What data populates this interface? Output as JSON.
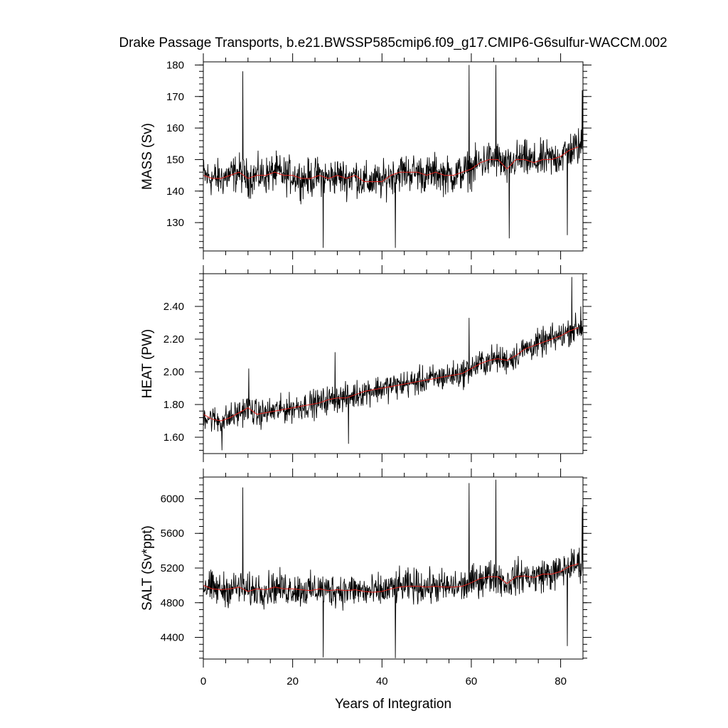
{
  "chart_data": {
    "type": "line",
    "title": "Drake Passage Transports, b.e21.BWSSP585cmip6.f09_g17.CMIP6-G6sulfur-WACCM.002",
    "xlabel": "Years of Integration",
    "xlim": [
      0,
      85
    ],
    "x_ticks": [
      0,
      20,
      40,
      60,
      80
    ],
    "x_tick_labels": [
      "0",
      "20",
      "40",
      "60",
      "80"
    ],
    "colors": {
      "monthly": "#000000",
      "annual_mean": "#e0201b"
    },
    "panels": [
      {
        "name": "mass",
        "ylabel": "MASS (Sv)",
        "ylim": [
          121,
          181
        ],
        "y_ticks": [
          130,
          140,
          150,
          160,
          170,
          180
        ],
        "y_tick_labels": [
          "130",
          "140",
          "150",
          "160",
          "170",
          "180"
        ],
        "annual_mean": [
          [
            0,
            145
          ],
          [
            2,
            144
          ],
          [
            4,
            144
          ],
          [
            6,
            145
          ],
          [
            8,
            146
          ],
          [
            10,
            144
          ],
          [
            12,
            145
          ],
          [
            14,
            145
          ],
          [
            16,
            146
          ],
          [
            18,
            145
          ],
          [
            20,
            145
          ],
          [
            22,
            144
          ],
          [
            24,
            144
          ],
          [
            26,
            145
          ],
          [
            28,
            144
          ],
          [
            30,
            145
          ],
          [
            32,
            144
          ],
          [
            34,
            145
          ],
          [
            36,
            143
          ],
          [
            38,
            143
          ],
          [
            40,
            143
          ],
          [
            42,
            145
          ],
          [
            44,
            146
          ],
          [
            46,
            146
          ],
          [
            48,
            146
          ],
          [
            50,
            145
          ],
          [
            52,
            146
          ],
          [
            54,
            145
          ],
          [
            56,
            145
          ],
          [
            58,
            146
          ],
          [
            60,
            147
          ],
          [
            62,
            149
          ],
          [
            64,
            150
          ],
          [
            66,
            150
          ],
          [
            68,
            147
          ],
          [
            70,
            150
          ],
          [
            72,
            150
          ],
          [
            74,
            149
          ],
          [
            76,
            150
          ],
          [
            78,
            150
          ],
          [
            80,
            151
          ],
          [
            82,
            153
          ],
          [
            84,
            154
          ]
        ],
        "monthly_amplitude": 7,
        "spikes": [
          [
            8.8,
            178
          ],
          [
            59.5,
            180
          ],
          [
            65.5,
            180
          ],
          [
            84.8,
            172
          ],
          [
            26.8,
            122
          ],
          [
            43,
            122
          ],
          [
            81.5,
            126
          ],
          [
            68.5,
            125
          ]
        ]
      },
      {
        "name": "heat",
        "ylabel": "HEAT (PW)",
        "ylim": [
          1.5,
          2.6
        ],
        "y_ticks": [
          1.6,
          1.8,
          2.0,
          2.2,
          2.4
        ],
        "y_tick_labels": [
          "1.60",
          "1.80",
          "2.00",
          "2.20",
          "2.40"
        ],
        "annual_mean": [
          [
            0,
            1.74
          ],
          [
            2,
            1.71
          ],
          [
            4,
            1.7
          ],
          [
            6,
            1.72
          ],
          [
            8,
            1.75
          ],
          [
            10,
            1.78
          ],
          [
            12,
            1.74
          ],
          [
            14,
            1.75
          ],
          [
            16,
            1.76
          ],
          [
            18,
            1.77
          ],
          [
            20,
            1.78
          ],
          [
            22,
            1.79
          ],
          [
            24,
            1.8
          ],
          [
            26,
            1.81
          ],
          [
            28,
            1.83
          ],
          [
            30,
            1.84
          ],
          [
            32,
            1.84
          ],
          [
            34,
            1.86
          ],
          [
            36,
            1.88
          ],
          [
            38,
            1.89
          ],
          [
            40,
            1.9
          ],
          [
            42,
            1.91
          ],
          [
            44,
            1.92
          ],
          [
            46,
            1.93
          ],
          [
            48,
            1.94
          ],
          [
            50,
            1.95
          ],
          [
            52,
            1.96
          ],
          [
            54,
            1.97
          ],
          [
            56,
            1.98
          ],
          [
            58,
            1.99
          ],
          [
            60,
            2.02
          ],
          [
            62,
            2.05
          ],
          [
            64,
            2.07
          ],
          [
            66,
            2.08
          ],
          [
            68,
            2.07
          ],
          [
            70,
            2.1
          ],
          [
            72,
            2.14
          ],
          [
            74,
            2.16
          ],
          [
            76,
            2.18
          ],
          [
            78,
            2.2
          ],
          [
            80,
            2.22
          ],
          [
            82,
            2.25
          ],
          [
            84,
            2.27
          ]
        ],
        "monthly_amplitude": 0.1,
        "spikes": [
          [
            10.2,
            2.02
          ],
          [
            29.5,
            2.12
          ],
          [
            59.5,
            2.33
          ],
          [
            82.5,
            2.58
          ],
          [
            84.5,
            2.4
          ],
          [
            4.2,
            1.52
          ],
          [
            32.5,
            1.56
          ]
        ]
      },
      {
        "name": "salt",
        "ylabel": "SALT (Sv*ppt)",
        "ylim": [
          4150,
          6250
        ],
        "y_ticks": [
          4400,
          4800,
          5200,
          5600,
          6000
        ],
        "y_tick_labels": [
          "4400",
          "4800",
          "5200",
          "5600",
          "6000"
        ],
        "annual_mean": [
          [
            0,
            5000
          ],
          [
            2,
            4960
          ],
          [
            4,
            4950
          ],
          [
            6,
            4960
          ],
          [
            8,
            4980
          ],
          [
            10,
            4930
          ],
          [
            12,
            4960
          ],
          [
            14,
            4950
          ],
          [
            16,
            4980
          ],
          [
            18,
            4960
          ],
          [
            20,
            4960
          ],
          [
            22,
            4950
          ],
          [
            24,
            4940
          ],
          [
            26,
            4960
          ],
          [
            28,
            4940
          ],
          [
            30,
            4950
          ],
          [
            32,
            4940
          ],
          [
            34,
            4950
          ],
          [
            36,
            4930
          ],
          [
            38,
            4920
          ],
          [
            40,
            4930
          ],
          [
            42,
            4960
          ],
          [
            44,
            4980
          ],
          [
            46,
            4990
          ],
          [
            48,
            4990
          ],
          [
            50,
            4980
          ],
          [
            52,
            4990
          ],
          [
            54,
            4980
          ],
          [
            56,
            4980
          ],
          [
            58,
            4990
          ],
          [
            60,
            5030
          ],
          [
            62,
            5080
          ],
          [
            64,
            5100
          ],
          [
            66,
            5100
          ],
          [
            68,
            5020
          ],
          [
            70,
            5100
          ],
          [
            72,
            5110
          ],
          [
            74,
            5090
          ],
          [
            76,
            5130
          ],
          [
            78,
            5130
          ],
          [
            80,
            5160
          ],
          [
            82,
            5220
          ],
          [
            84,
            5250
          ]
        ],
        "monthly_amplitude": 230,
        "spikes": [
          [
            8.8,
            6130
          ],
          [
            59.5,
            6180
          ],
          [
            65.5,
            6220
          ],
          [
            84.8,
            5900
          ],
          [
            26.8,
            4170
          ],
          [
            43,
            4160
          ],
          [
            81.5,
            4300
          ]
        ]
      }
    ]
  }
}
